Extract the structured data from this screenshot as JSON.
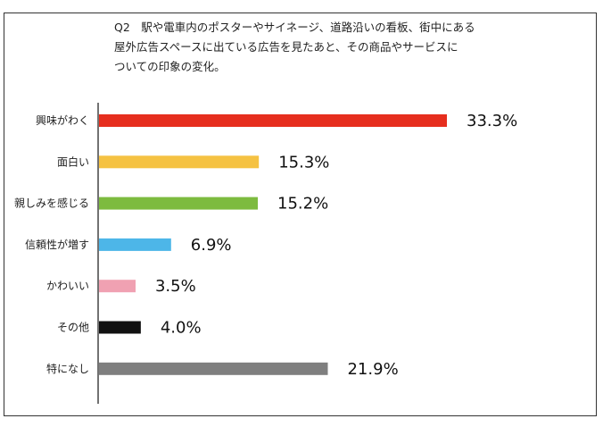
{
  "chart_data": {
    "type": "bar",
    "orientation": "horizontal",
    "title_lines": [
      "Q2　駅や電車内のポスターやサイネージ、道路沿いの看板、街中にある",
      "屋外広告スペースに出ている広告を見たあと、その商品やサービスに",
      "ついての印象の変化。"
    ],
    "categories": [
      "興味がわく",
      "面白い",
      "親しみを感じる",
      "信頼性が増す",
      "かわいい",
      "その他",
      "特になし"
    ],
    "values": [
      33.3,
      15.3,
      15.2,
      6.9,
      3.5,
      4.0,
      21.9
    ],
    "value_labels": [
      "33.3%",
      "15.3%",
      "15.2%",
      "6.9%",
      "3.5%",
      "4.0%",
      "21.9%"
    ],
    "colors": [
      "#e62e1e",
      "#f5c242",
      "#7dbb3f",
      "#4db6e8",
      "#f0a1b2",
      "#111111",
      "#7f7f7f"
    ],
    "unit": "%",
    "grid": false,
    "legend": "none"
  }
}
